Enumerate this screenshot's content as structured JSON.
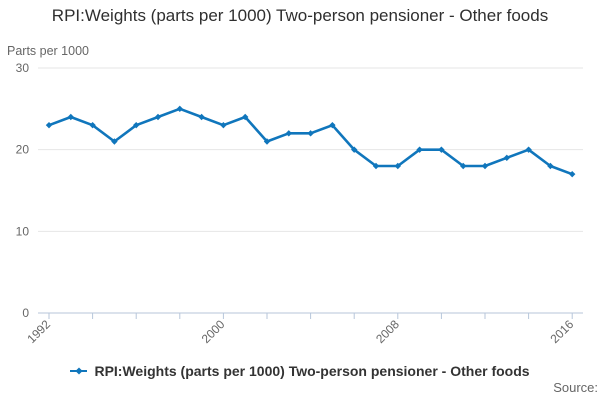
{
  "title": "RPI:Weights (parts per 1000) Two-person pensioner - Other foods",
  "y_axis_unit_label": "Parts per 1000",
  "legend": {
    "label": "RPI:Weights (parts per 1000) Two-person pensioner - Other foods"
  },
  "source_label": "Source:",
  "colors": {
    "line": "#1076bc",
    "grid": "#e6e6e6",
    "axis": "#b7c6da",
    "muted": "#666666",
    "title_text": "#2f2f2f"
  },
  "chart_data": {
    "type": "line",
    "title": "RPI:Weights (parts per 1000) Two-person pensioner - Other foods",
    "xlabel": "",
    "ylabel": "Parts per 1000",
    "x": [
      1992,
      1993,
      1994,
      1995,
      1996,
      1997,
      1998,
      1999,
      2000,
      2001,
      2002,
      2003,
      2004,
      2005,
      2006,
      2007,
      2008,
      2009,
      2010,
      2011,
      2012,
      2013,
      2014,
      2015,
      2016
    ],
    "series": [
      {
        "name": "RPI:Weights (parts per 1000) Two-person pensioner - Other foods",
        "values": [
          23,
          24,
          23,
          21,
          23,
          24,
          25,
          24,
          23,
          24,
          21,
          22,
          22,
          23,
          20,
          18,
          18,
          20,
          20,
          18,
          18,
          19,
          20,
          18,
          17
        ]
      }
    ],
    "ylim": [
      0,
      30
    ],
    "y_ticks": [
      0,
      10,
      20,
      30
    ],
    "x_tick_interval": 2,
    "x_tick_labels": [
      "1992",
      "2000",
      "2008",
      "2016"
    ],
    "grid": "horizontal",
    "legend_position": "bottom",
    "marker": "diamond"
  }
}
